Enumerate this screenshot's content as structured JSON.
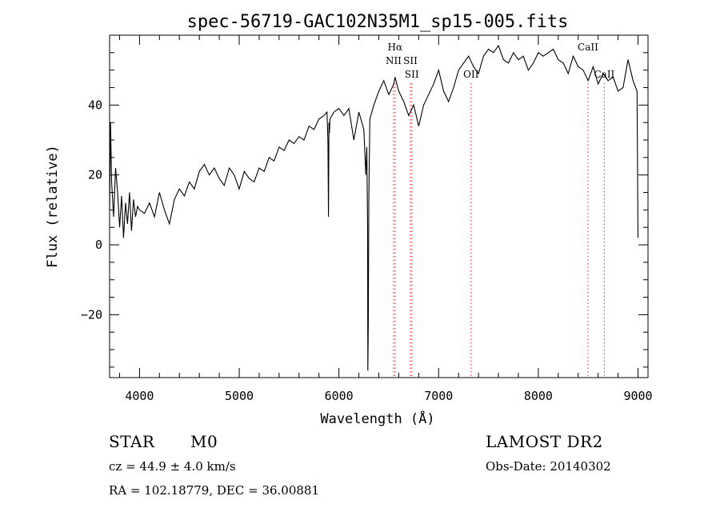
{
  "chart_data": {
    "type": "line",
    "title": "spec-56719-GAC102N35M1_sp15-005.fits",
    "xlabel": "Wavelength (Å)",
    "ylabel": "Flux (relative)",
    "xlim": [
      3700,
      9100
    ],
    "ylim": [
      -38,
      60
    ],
    "xticks": [
      4000,
      5000,
      6000,
      7000,
      8000,
      9000
    ],
    "yticks": [
      -20,
      0,
      20,
      40
    ],
    "grid": false,
    "series": [
      {
        "x": [
          3700,
          3710,
          3720,
          3740,
          3760,
          3780,
          3800,
          3820,
          3840,
          3860,
          3880,
          3900,
          3920,
          3940,
          3960,
          3980,
          4000,
          4050,
          4100,
          4150,
          4200,
          4250,
          4300,
          4350,
          4400,
          4450,
          4500,
          4550,
          4600,
          4650,
          4700,
          4750,
          4800,
          4850,
          4900,
          4950,
          5000,
          5050,
          5100,
          5150,
          5200,
          5250,
          5300,
          5350,
          5400,
          5450,
          5500,
          5550,
          5600,
          5650,
          5700,
          5750,
          5800,
          5850,
          5880,
          5890,
          5895,
          5900,
          5905,
          5910,
          5950,
          6000,
          6050,
          6100,
          6150,
          6200,
          6250,
          6270,
          6280,
          6288,
          6290,
          6295,
          6300,
          6310,
          6350,
          6400,
          6450,
          6500,
          6550,
          6563,
          6600,
          6650,
          6700,
          6750,
          6800,
          6850,
          6900,
          6950,
          7000,
          7050,
          7100,
          7150,
          7200,
          7250,
          7300,
          7350,
          7400,
          7450,
          7500,
          7550,
          7600,
          7650,
          7700,
          7750,
          7800,
          7850,
          7900,
          7950,
          8000,
          8050,
          8100,
          8150,
          8200,
          8250,
          8300,
          8350,
          8400,
          8450,
          8500,
          8550,
          8600,
          8650,
          8700,
          8750,
          8800,
          8850,
          8900,
          8950,
          8990,
          9000
        ],
        "y": [
          10,
          35,
          18,
          8,
          22,
          15,
          5,
          14,
          2,
          12,
          6,
          15,
          4,
          13,
          8,
          11,
          10,
          9,
          12,
          8,
          15,
          10,
          6,
          13,
          16,
          14,
          18,
          16,
          21,
          23,
          20,
          22,
          19,
          17,
          22,
          20,
          16,
          21,
          19,
          18,
          22,
          21,
          25,
          24,
          28,
          27,
          30,
          29,
          31,
          30,
          34,
          33,
          36,
          37,
          38,
          30,
          8,
          35,
          32,
          36,
          38,
          39,
          37,
          39,
          30,
          38,
          33,
          20,
          28,
          5,
          -36,
          -22,
          12,
          36,
          40,
          44,
          47,
          43,
          46,
          48,
          44,
          41,
          37,
          40,
          34,
          40,
          43,
          46,
          50,
          44,
          41,
          45,
          50,
          52,
          54,
          51,
          49,
          54,
          56,
          55,
          57,
          53,
          52,
          55,
          53,
          54,
          50,
          52,
          55,
          54,
          55,
          56,
          53,
          52,
          49,
          54,
          51,
          50,
          47,
          51,
          46,
          49,
          47,
          48,
          44,
          45,
          53,
          47,
          44,
          2
        ]
      }
    ],
    "annotations": [
      {
        "label": "Hα",
        "x": 6563,
        "row": 0
      },
      {
        "label": "NII",
        "x": 6548,
        "row": 1
      },
      {
        "label": "SII",
        "x": 6717,
        "row": 1
      },
      {
        "label": "SII",
        "x": 6731,
        "row": 2
      },
      {
        "label": "OII",
        "x": 7325,
        "row": 2
      },
      {
        "label": "CaII",
        "x": 8498,
        "row": 0
      },
      {
        "label": "CaII",
        "x": 8662,
        "row": 2
      }
    ],
    "line_markers": [
      6548,
      6563,
      6717,
      6731,
      7325,
      8498,
      8662
    ],
    "marker_color": "#ff4040"
  },
  "info": {
    "object_class": "STAR",
    "subclass": "M0",
    "survey": "LAMOST DR2",
    "cz": "cz = 44.9 ± 4.0 km/s",
    "obs_date": "Obs-Date: 20140302",
    "coords": "RA = 102.18779, DEC =  36.00881"
  }
}
